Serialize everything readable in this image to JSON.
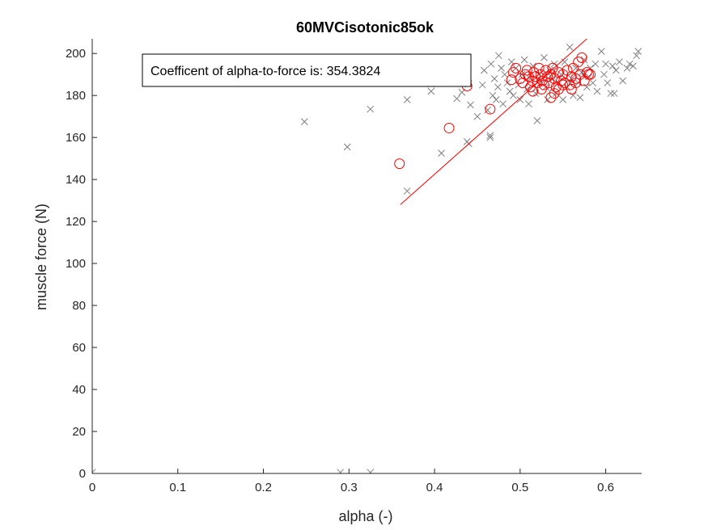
{
  "chart_data": {
    "type": "scatter",
    "title": "60MVCisotonic85ok",
    "xlabel": "alpha (-)",
    "ylabel": "muscle force (N)",
    "xlim": [
      0,
      0.642
    ],
    "ylim": [
      0,
      207
    ],
    "xticks": [
      0,
      0.1,
      0.2,
      0.3,
      0.4,
      0.5,
      0.6
    ],
    "xtick_labels": [
      "0",
      "0.1",
      "0.2",
      "0.3",
      "0.4",
      "0.5",
      "0.6"
    ],
    "yticks": [
      0,
      20,
      40,
      60,
      80,
      100,
      120,
      140,
      160,
      180,
      200
    ],
    "ytick_labels": [
      "0",
      "20",
      "40",
      "60",
      "80",
      "100",
      "120",
      "140",
      "160",
      "180",
      "200"
    ],
    "grid": false,
    "annotation": "Coefficent of alpha-to-force is: 354.3824",
    "series": [
      {
        "marker": "x",
        "color": "#808080",
        "points": [
          [
            0.0,
            0.5
          ],
          [
            0.29,
            0.5
          ],
          [
            0.325,
            0.5
          ],
          [
            0.248,
            167.5
          ],
          [
            0.298,
            155.5
          ],
          [
            0.325,
            173.5
          ],
          [
            0.368,
            134.5
          ],
          [
            0.368,
            178
          ],
          [
            0.374,
            186
          ],
          [
            0.396,
            182
          ],
          [
            0.396,
            185.5
          ],
          [
            0.408,
            152.5
          ],
          [
            0.426,
            178.5
          ],
          [
            0.432,
            181.5
          ],
          [
            0.438,
            158
          ],
          [
            0.44,
            157
          ],
          [
            0.44,
            185.5
          ],
          [
            0.442,
            175.5
          ],
          [
            0.45,
            170
          ],
          [
            0.456,
            185
          ],
          [
            0.458,
            192
          ],
          [
            0.462,
            173
          ],
          [
            0.465,
            160
          ],
          [
            0.465,
            161
          ],
          [
            0.466,
            195
          ],
          [
            0.468,
            180
          ],
          [
            0.47,
            188
          ],
          [
            0.472,
            178
          ],
          [
            0.474,
            184
          ],
          [
            0.475,
            199
          ],
          [
            0.478,
            193
          ],
          [
            0.48,
            176
          ],
          [
            0.482,
            190
          ],
          [
            0.485,
            186
          ],
          [
            0.488,
            182
          ],
          [
            0.49,
            196
          ],
          [
            0.492,
            180
          ],
          [
            0.495,
            193
          ],
          [
            0.498,
            185
          ],
          [
            0.5,
            178
          ],
          [
            0.502,
            190
          ],
          [
            0.505,
            197
          ],
          [
            0.508,
            183
          ],
          [
            0.51,
            176
          ],
          [
            0.512,
            188
          ],
          [
            0.515,
            194
          ],
          [
            0.518,
            181
          ],
          [
            0.52,
            168
          ],
          [
            0.522,
            190
          ],
          [
            0.525,
            186
          ],
          [
            0.528,
            198
          ],
          [
            0.53,
            184
          ],
          [
            0.532,
            178
          ],
          [
            0.535,
            192
          ],
          [
            0.538,
            188
          ],
          [
            0.54,
            195
          ],
          [
            0.542,
            181
          ],
          [
            0.545,
            186
          ],
          [
            0.548,
            190
          ],
          [
            0.55,
            178
          ],
          [
            0.552,
            196
          ],
          [
            0.555,
            184
          ],
          [
            0.558,
            203
          ],
          [
            0.56,
            188
          ],
          [
            0.562,
            180
          ],
          [
            0.565,
            193
          ],
          [
            0.568,
            186
          ],
          [
            0.57,
            179
          ],
          [
            0.572,
            191
          ],
          [
            0.575,
            197
          ],
          [
            0.578,
            184
          ],
          [
            0.58,
            189
          ],
          [
            0.582,
            193
          ],
          [
            0.585,
            186
          ],
          [
            0.588,
            195
          ],
          [
            0.59,
            182
          ],
          [
            0.595,
            201
          ],
          [
            0.598,
            190
          ],
          [
            0.6,
            195
          ],
          [
            0.602,
            186
          ],
          [
            0.606,
            181
          ],
          [
            0.608,
            194
          ],
          [
            0.61,
            181
          ],
          [
            0.612,
            192
          ],
          [
            0.616,
            196
          ],
          [
            0.62,
            187
          ],
          [
            0.625,
            193
          ],
          [
            0.628,
            195
          ],
          [
            0.632,
            194
          ],
          [
            0.636,
            199
          ],
          [
            0.638,
            201
          ]
        ]
      },
      {
        "marker": "o",
        "color": "#ff0000",
        "points": [
          [
            0.359,
            147.5
          ],
          [
            0.417,
            164.5
          ],
          [
            0.438,
            184.5
          ],
          [
            0.465,
            173.5
          ],
          [
            0.49,
            187.5
          ],
          [
            0.492,
            191
          ],
          [
            0.495,
            193
          ],
          [
            0.5,
            188
          ],
          [
            0.503,
            186
          ],
          [
            0.506,
            190
          ],
          [
            0.508,
            192
          ],
          [
            0.51,
            189
          ],
          [
            0.512,
            184
          ],
          [
            0.514,
            187
          ],
          [
            0.516,
            191
          ],
          [
            0.518,
            189
          ],
          [
            0.52,
            186
          ],
          [
            0.522,
            193
          ],
          [
            0.524,
            190
          ],
          [
            0.526,
            187
          ],
          [
            0.528,
            185
          ],
          [
            0.53,
            192
          ],
          [
            0.532,
            189
          ],
          [
            0.534,
            186
          ],
          [
            0.536,
            190
          ],
          [
            0.538,
            193
          ],
          [
            0.54,
            188
          ],
          [
            0.542,
            184
          ],
          [
            0.545,
            191
          ],
          [
            0.548,
            187
          ],
          [
            0.55,
            190
          ],
          [
            0.552,
            186
          ],
          [
            0.555,
            192
          ],
          [
            0.558,
            185
          ],
          [
            0.56,
            189
          ],
          [
            0.562,
            193
          ],
          [
            0.565,
            188
          ],
          [
            0.568,
            196
          ],
          [
            0.57,
            190
          ],
          [
            0.572,
            198
          ],
          [
            0.575,
            187
          ],
          [
            0.578,
            191
          ],
          [
            0.58,
            190
          ],
          [
            0.582,
            190
          ],
          [
            0.536,
            179
          ],
          [
            0.54,
            181
          ],
          [
            0.545,
            183
          ],
          [
            0.55,
            185
          ],
          [
            0.515,
            182
          ],
          [
            0.525,
            183
          ],
          [
            0.56,
            183
          ],
          [
            0.565,
            186
          ]
        ]
      }
    ],
    "fit_line": {
      "color": "#ff0000",
      "points": [
        [
          0.36,
          128
        ],
        [
          0.578,
          207
        ]
      ]
    }
  }
}
